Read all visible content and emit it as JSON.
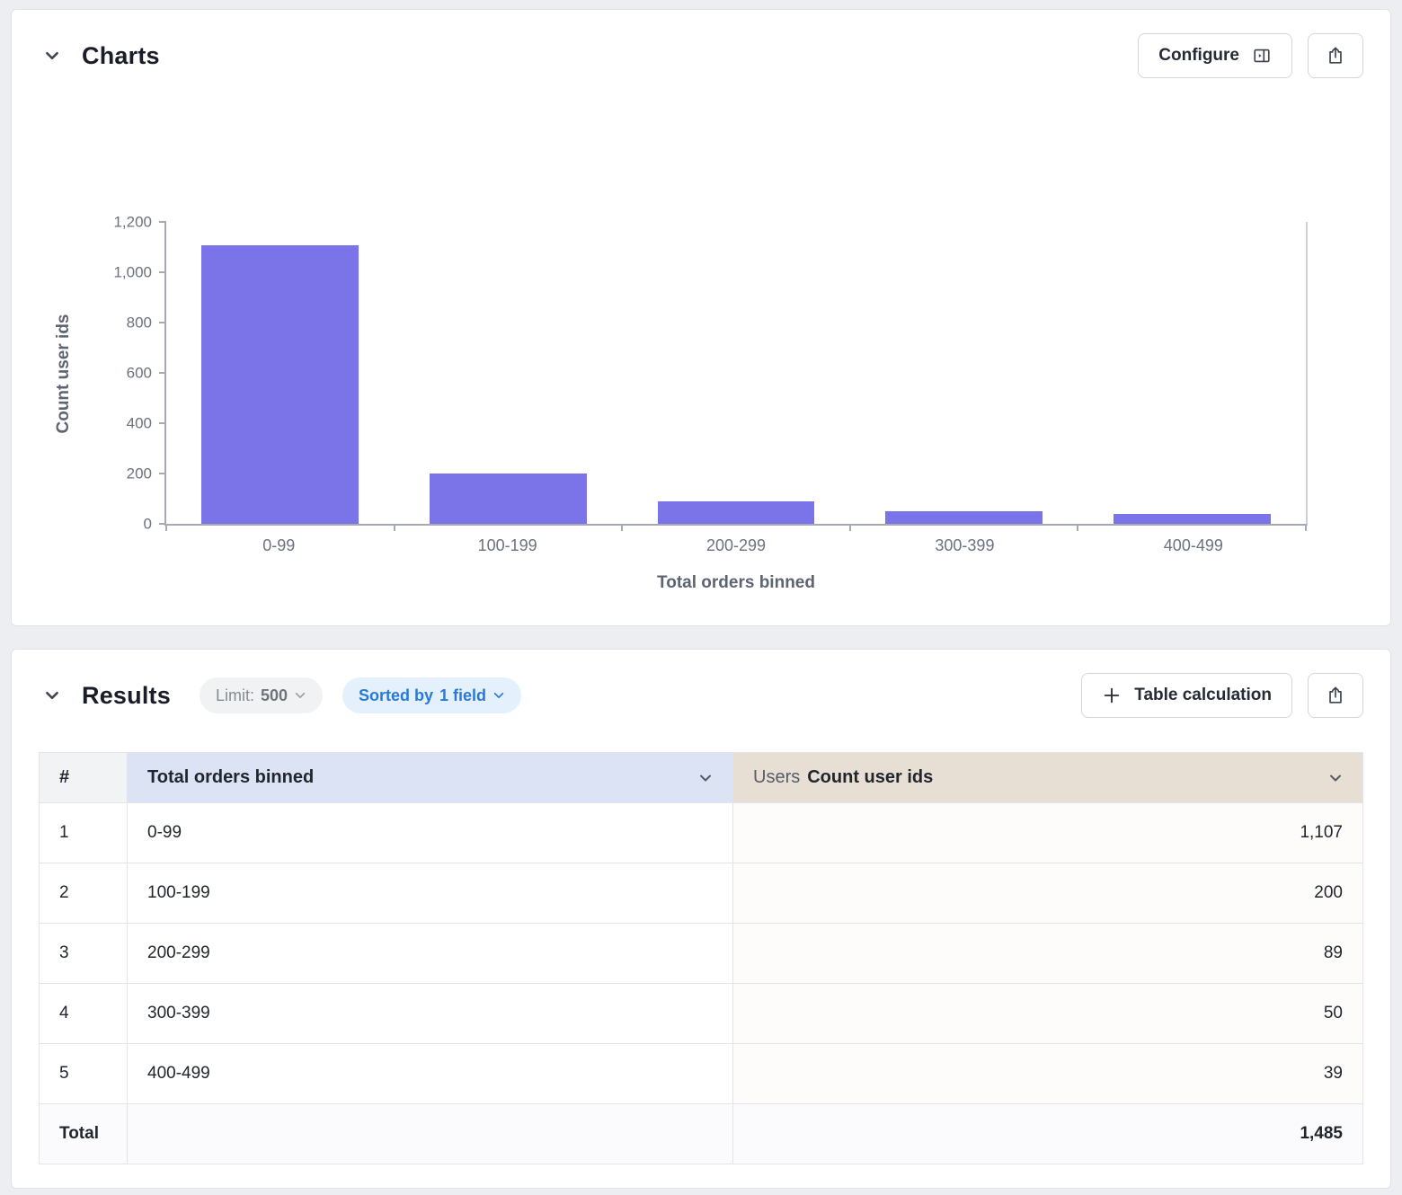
{
  "charts_panel": {
    "title": "Charts",
    "configure_label": "Configure"
  },
  "chart_data": {
    "type": "bar",
    "categories": [
      "0-99",
      "100-199",
      "200-299",
      "300-399",
      "400-499"
    ],
    "values": [
      1107,
      200,
      89,
      50,
      39
    ],
    "title": "",
    "xlabel": "Total orders binned",
    "ylabel": "Count user ids",
    "ylim": [
      0,
      1200
    ],
    "yticks": [
      "0",
      "200",
      "400",
      "600",
      "800",
      "1,000",
      "1,200"
    ],
    "grid": false,
    "legend": "none",
    "bar_color": "#7b74e8"
  },
  "results_panel": {
    "title": "Results",
    "limit_label": "Limit:",
    "limit_value": "500",
    "sorted_label": "Sorted by",
    "sorted_value": "1 field",
    "table_calculation_label": "Table calculation"
  },
  "table": {
    "header": {
      "index": "#",
      "dimension": "Total orders binned",
      "measure_view": "Users",
      "measure_field": "Count user ids"
    },
    "rows": [
      {
        "index": "1",
        "dimension": "0-99",
        "value": "1,107"
      },
      {
        "index": "2",
        "dimension": "100-199",
        "value": "200"
      },
      {
        "index": "3",
        "dimension": "200-299",
        "value": "89"
      },
      {
        "index": "4",
        "dimension": "300-399",
        "value": "50"
      },
      {
        "index": "5",
        "dimension": "400-499",
        "value": "39"
      }
    ],
    "total": {
      "label": "Total",
      "value": "1,485"
    }
  },
  "colors": {
    "bar": "#7b74e8",
    "accent_blue": "#2b79d7",
    "dimension_header_bg": "#dce3f5",
    "measure_header_bg": "#e8dfd4",
    "page_bg": "#eceef2"
  }
}
